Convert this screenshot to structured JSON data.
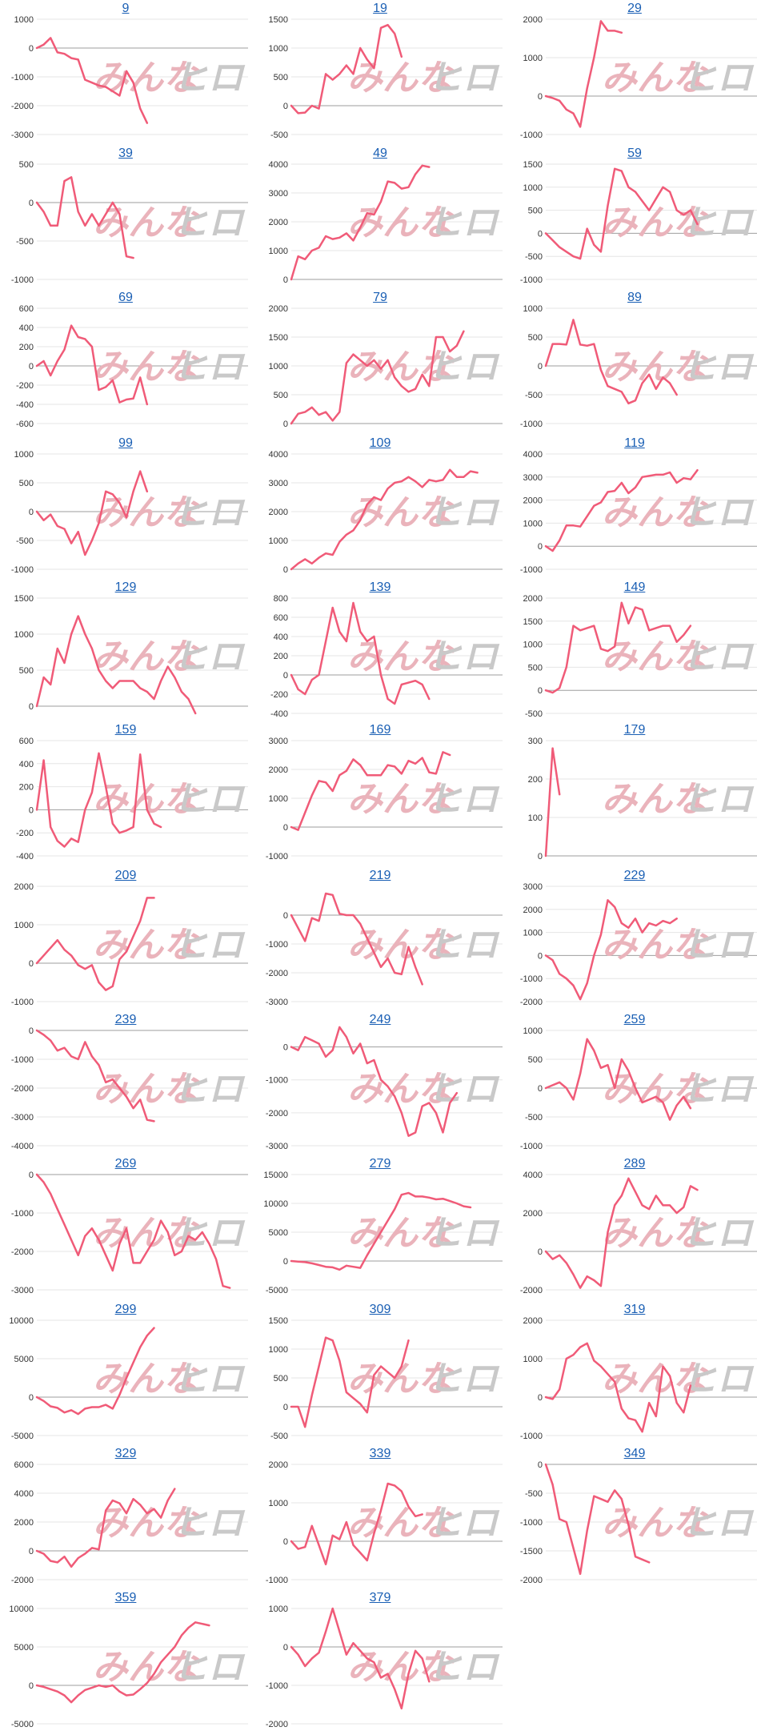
{
  "colors": {
    "line": "#f05b78",
    "grid": "#e6e6e6",
    "baseline": "#9e9e9e",
    "title": "#1a5fb4"
  },
  "watermark": {
    "part1": "みんな",
    "part2": "ヒロ"
  },
  "chart_data": [
    {
      "type": "line",
      "title": "9",
      "yticks": [
        1000,
        0,
        -1000,
        -2000,
        -3000
      ],
      "ylim": [
        -3000,
        1000
      ],
      "values": [
        0,
        120,
        350,
        -150,
        -200,
        -350,
        -400,
        -1100,
        -1200,
        -1300,
        -1350,
        -1500,
        -1650,
        -800,
        -1200,
        -2100,
        -2600
      ]
    },
    {
      "type": "line",
      "title": "19",
      "yticks": [
        1500,
        1000,
        500,
        0,
        -500
      ],
      "ylim": [
        -500,
        1500
      ],
      "values": [
        0,
        -130,
        -120,
        0,
        -50,
        550,
        450,
        550,
        700,
        550,
        1000,
        800,
        650,
        1350,
        1400,
        1250,
        850
      ]
    },
    {
      "type": "line",
      "title": "29",
      "yticks": [
        2000,
        1000,
        0,
        -1000
      ],
      "ylim": [
        -1000,
        2000
      ],
      "values": [
        0,
        -50,
        -120,
        -350,
        -450,
        -800,
        200,
        1000,
        1950,
        1700,
        1700,
        1650
      ]
    },
    {
      "type": "line",
      "title": "39",
      "yticks": [
        500,
        0,
        -500,
        -1000
      ],
      "ylim": [
        -1000,
        500
      ],
      "values": [
        0,
        -120,
        -300,
        -300,
        280,
        330,
        -120,
        -300,
        -150,
        -300,
        -150,
        0,
        -150,
        -700,
        -720
      ]
    },
    {
      "type": "line",
      "title": "49",
      "yticks": [
        4000,
        3000,
        2000,
        1000,
        0
      ],
      "ylim": [
        0,
        4000
      ],
      "values": [
        0,
        800,
        700,
        1000,
        1100,
        1500,
        1400,
        1450,
        1600,
        1350,
        1800,
        2300,
        2250,
        2700,
        3400,
        3350,
        3150,
        3200,
        3650,
        3950,
        3900
      ]
    },
    {
      "type": "line",
      "title": "59",
      "yticks": [
        1500,
        1000,
        500,
        0,
        -500,
        -1000
      ],
      "ylim": [
        -1000,
        1500
      ],
      "values": [
        0,
        -150,
        -300,
        -400,
        -500,
        -550,
        100,
        -250,
        -400,
        600,
        1400,
        1350,
        1000,
        900,
        700,
        500,
        750,
        1000,
        900,
        500,
        400,
        500,
        200
      ]
    },
    {
      "type": "line",
      "title": "69",
      "yticks": [
        600,
        400,
        200,
        0,
        -200,
        -400,
        -600
      ],
      "ylim": [
        -600,
        600
      ],
      "values": [
        0,
        50,
        -100,
        50,
        170,
        420,
        300,
        280,
        200,
        -250,
        -220,
        -150,
        -380,
        -350,
        -340,
        -120,
        -400
      ]
    },
    {
      "type": "line",
      "title": "79",
      "yticks": [
        2000,
        1500,
        1000,
        500,
        0
      ],
      "ylim": [
        0,
        2000
      ],
      "values": [
        0,
        170,
        200,
        280,
        150,
        200,
        50,
        200,
        1050,
        1200,
        1100,
        1000,
        1100,
        950,
        1100,
        800,
        650,
        550,
        600,
        850,
        650,
        1500,
        1500,
        1250,
        1350,
        1600
      ]
    },
    {
      "type": "line",
      "title": "89",
      "yticks": [
        1000,
        500,
        0,
        -500,
        -1000
      ],
      "ylim": [
        -1000,
        1000
      ],
      "values": [
        0,
        380,
        380,
        370,
        800,
        370,
        350,
        380,
        -70,
        -350,
        -400,
        -450,
        -650,
        -600,
        -300,
        -150,
        -400,
        -200,
        -300,
        -500
      ]
    },
    {
      "type": "line",
      "title": "99",
      "yticks": [
        1000,
        500,
        0,
        -500,
        -1000
      ],
      "ylim": [
        -1000,
        1000
      ],
      "values": [
        0,
        -150,
        -50,
        -250,
        -300,
        -550,
        -350,
        -750,
        -500,
        -200,
        350,
        300,
        150,
        -100,
        350,
        700,
        350
      ]
    },
    {
      "type": "line",
      "title": "109",
      "yticks": [
        4000,
        3000,
        2000,
        1000,
        0
      ],
      "ylim": [
        0,
        4000
      ],
      "values": [
        0,
        200,
        350,
        200,
        400,
        550,
        500,
        950,
        1200,
        1350,
        1700,
        2250,
        2500,
        2400,
        2800,
        3000,
        3050,
        3200,
        3050,
        2850,
        3100,
        3050,
        3100,
        3450,
        3200,
        3200,
        3400,
        3350
      ]
    },
    {
      "type": "line",
      "title": "119",
      "yticks": [
        4000,
        3000,
        2000,
        1000,
        0,
        -1000
      ],
      "ylim": [
        -1000,
        4000
      ],
      "values": [
        0,
        -200,
        250,
        900,
        900,
        850,
        1300,
        1750,
        1900,
        2350,
        2400,
        2750,
        2300,
        2550,
        3000,
        3050,
        3100,
        3100,
        3200,
        2750,
        2950,
        2900,
        3300
      ]
    },
    {
      "type": "line",
      "title": "129",
      "yticks": [
        1500,
        1000,
        500,
        0
      ],
      "ylim": [
        -100,
        1500
      ],
      "values": [
        0,
        400,
        300,
        800,
        600,
        1000,
        1250,
        1000,
        800,
        500,
        350,
        250,
        350,
        350,
        350,
        250,
        200,
        100,
        350,
        550,
        400,
        200,
        100,
        -100
      ]
    },
    {
      "type": "line",
      "title": "139",
      "yticks": [
        800,
        600,
        400,
        200,
        0,
        -200,
        -400
      ],
      "ylim": [
        -400,
        800
      ],
      "values": [
        0,
        -150,
        -200,
        -50,
        0,
        350,
        700,
        450,
        350,
        750,
        450,
        350,
        400,
        0,
        -250,
        -300,
        -100,
        -80,
        -60,
        -100,
        -250
      ]
    },
    {
      "type": "line",
      "title": "149",
      "yticks": [
        2000,
        1500,
        1000,
        500,
        0,
        -500
      ],
      "ylim": [
        -500,
        2000
      ],
      "values": [
        0,
        -50,
        50,
        500,
        1400,
        1300,
        1350,
        1400,
        900,
        850,
        950,
        1900,
        1450,
        1800,
        1750,
        1300,
        1350,
        1400,
        1400,
        1050,
        1200,
        1400
      ]
    },
    {
      "type": "line",
      "title": "159",
      "yticks": [
        600,
        400,
        200,
        0,
        -200,
        -400
      ],
      "ylim": [
        -400,
        600
      ],
      "values": [
        0,
        430,
        -150,
        -270,
        -320,
        -250,
        -280,
        0,
        150,
        490,
        200,
        -120,
        -200,
        -180,
        -150,
        480,
        0,
        -120,
        -150
      ]
    },
    {
      "type": "line",
      "title": "169",
      "yticks": [
        3000,
        2000,
        1000,
        0,
        -1000
      ],
      "ylim": [
        -1000,
        3000
      ],
      "values": [
        0,
        -100,
        500,
        1100,
        1600,
        1550,
        1250,
        1800,
        1950,
        2350,
        2150,
        1800,
        1800,
        1800,
        2150,
        2100,
        1850,
        2300,
        2200,
        2400,
        1900,
        1850,
        2600,
        2500
      ]
    },
    {
      "type": "line",
      "title": "179",
      "yticks": [
        300,
        200,
        100,
        0
      ],
      "ylim": [
        0,
        300
      ],
      "values": [
        0,
        280,
        160
      ]
    },
    {
      "type": "line",
      "title": "209",
      "yticks": [
        2000,
        1000,
        0,
        -1000
      ],
      "ylim": [
        -1000,
        2000
      ],
      "values": [
        0,
        200,
        400,
        600,
        350,
        200,
        -50,
        -150,
        -50,
        -500,
        -700,
        -600,
        100,
        300,
        700,
        1100,
        1700,
        1700
      ]
    },
    {
      "type": "line",
      "title": "219",
      "yticks": [
        0,
        -1000,
        -2000,
        -3000
      ],
      "ylim": [
        -3000,
        1000
      ],
      "values": [
        0,
        -450,
        -900,
        -100,
        -200,
        750,
        700,
        50,
        0,
        0,
        -300,
        -800,
        -1300,
        -1800,
        -1500,
        -2000,
        -2050,
        -1100,
        -1800,
        -2400
      ]
    },
    {
      "type": "line",
      "title": "229",
      "yticks": [
        3000,
        2000,
        1000,
        0,
        -1000,
        -2000
      ],
      "ylim": [
        -2000,
        3000
      ],
      "values": [
        0,
        -200,
        -800,
        -1000,
        -1300,
        -1900,
        -1200,
        0,
        900,
        2400,
        2100,
        1400,
        1200,
        1600,
        1000,
        1400,
        1300,
        1500,
        1400,
        1600
      ]
    },
    {
      "type": "line",
      "title": "239",
      "yticks": [
        0,
        -1000,
        -2000,
        -3000,
        -4000
      ],
      "ylim": [
        -4000,
        0
      ],
      "values": [
        0,
        -150,
        -350,
        -700,
        -600,
        -900,
        -1000,
        -400,
        -900,
        -1200,
        -1800,
        -1700,
        -2000,
        -2300,
        -2700,
        -2400,
        -3100,
        -3150
      ]
    },
    {
      "type": "line",
      "title": "249",
      "yticks": [
        0,
        -1000,
        -2000,
        -3000
      ],
      "ylim": [
        -3000,
        500
      ],
      "values": [
        0,
        -100,
        300,
        200,
        100,
        -300,
        -100,
        600,
        300,
        -200,
        100,
        -500,
        -400,
        -1000,
        -1200,
        -1500,
        -2000,
        -2700,
        -2600,
        -1800,
        -1700,
        -2000,
        -2600,
        -1700,
        -1400
      ]
    },
    {
      "type": "line",
      "title": "259",
      "yticks": [
        1000,
        500,
        0,
        -500,
        -1000
      ],
      "ylim": [
        -1000,
        1000
      ],
      "values": [
        0,
        50,
        100,
        0,
        -200,
        250,
        850,
        650,
        350,
        400,
        0,
        500,
        300,
        0,
        -250,
        -200,
        -150,
        -250,
        -550,
        -300,
        -150,
        -350
      ]
    },
    {
      "type": "line",
      "title": "269",
      "yticks": [
        0,
        -1000,
        -2000,
        -3000
      ],
      "ylim": [
        -3000,
        0
      ],
      "values": [
        0,
        -200,
        -500,
        -900,
        -1300,
        -1700,
        -2100,
        -1600,
        -1400,
        -1700,
        -2100,
        -2500,
        -1800,
        -1400,
        -2300,
        -2300,
        -2000,
        -1700,
        -1200,
        -1500,
        -2100,
        -2000,
        -1600,
        -1700,
        -1500,
        -1800,
        -2200,
        -2900,
        -2950
      ]
    },
    {
      "type": "line",
      "title": "279",
      "yticks": [
        15000,
        10000,
        5000,
        0,
        -5000
      ],
      "ylim": [
        -5000,
        15000
      ],
      "values": [
        0,
        -100,
        -200,
        -400,
        -700,
        -1000,
        -1100,
        -1500,
        -800,
        -1000,
        -1200,
        1000,
        3000,
        5000,
        7000,
        9000,
        11500,
        11800,
        11200,
        11200,
        11000,
        10700,
        10800,
        10400,
        10000,
        9500,
        9300
      ]
    },
    {
      "type": "line",
      "title": "289",
      "yticks": [
        4000,
        2000,
        0,
        -2000
      ],
      "ylim": [
        -2000,
        4000
      ],
      "values": [
        0,
        -400,
        -200,
        -600,
        -1200,
        -1900,
        -1300,
        -1500,
        -1800,
        1000,
        2400,
        2900,
        3800,
        3100,
        2400,
        2200,
        2900,
        2400,
        2400,
        2000,
        2300,
        3400,
        3200
      ]
    },
    {
      "type": "line",
      "title": "299",
      "yticks": [
        10000,
        5000,
        0,
        -5000
      ],
      "ylim": [
        -5000,
        10000
      ],
      "values": [
        0,
        -500,
        -1200,
        -1400,
        -2000,
        -1700,
        -2200,
        -1500,
        -1300,
        -1300,
        -1000,
        -1500,
        300,
        2500,
        4500,
        6500,
        8000,
        9000
      ]
    },
    {
      "type": "line",
      "title": "309",
      "yticks": [
        1500,
        1000,
        500,
        0,
        -500
      ],
      "ylim": [
        -500,
        1500
      ],
      "values": [
        0,
        0,
        -350,
        200,
        700,
        1200,
        1150,
        800,
        250,
        150,
        50,
        -100,
        550,
        700,
        600,
        500,
        700,
        1150
      ]
    },
    {
      "type": "line",
      "title": "319",
      "yticks": [
        2000,
        1000,
        0,
        -1000
      ],
      "ylim": [
        -1000,
        2000
      ],
      "values": [
        0,
        -50,
        200,
        1000,
        1100,
        1300,
        1400,
        950,
        800,
        600,
        400,
        -300,
        -550,
        -600,
        -900,
        -150,
        -500,
        800,
        550,
        -150,
        -400,
        300
      ]
    },
    {
      "type": "line",
      "title": "329",
      "yticks": [
        6000,
        4000,
        2000,
        0,
        -2000
      ],
      "ylim": [
        -2000,
        6000
      ],
      "values": [
        0,
        -200,
        -700,
        -800,
        -400,
        -1100,
        -500,
        -200,
        200,
        100,
        2800,
        3500,
        3300,
        2600,
        3600,
        3200,
        2600,
        2900,
        2300,
        3500,
        4300
      ]
    },
    {
      "type": "line",
      "title": "339",
      "yticks": [
        2000,
        1000,
        0,
        -1000
      ],
      "ylim": [
        -1000,
        2000
      ],
      "values": [
        0,
        -200,
        -150,
        400,
        -100,
        -600,
        150,
        50,
        500,
        -100,
        -300,
        -500,
        200,
        800,
        1500,
        1450,
        1300,
        900,
        650,
        700
      ]
    },
    {
      "type": "line",
      "title": "349",
      "yticks": [
        0,
        -500,
        -1000,
        -1500,
        -2000
      ],
      "ylim": [
        -2000,
        0
      ],
      "values": [
        0,
        -350,
        -950,
        -1000,
        -1450,
        -1900,
        -1150,
        -550,
        -600,
        -650,
        -450,
        -600,
        -1050,
        -1600,
        -1650,
        -1700
      ]
    },
    {
      "type": "line",
      "title": "359",
      "yticks": [
        10000,
        5000,
        0,
        -5000
      ],
      "ylim": [
        -5000,
        10000
      ],
      "values": [
        0,
        -200,
        -500,
        -800,
        -1300,
        -2200,
        -1300,
        -600,
        -300,
        0,
        -200,
        0,
        -800,
        -1300,
        -1200,
        -500,
        300,
        1500,
        3000,
        4000,
        5000,
        6500,
        7500,
        8200,
        8000,
        7800
      ]
    },
    {
      "type": "line",
      "title": "379",
      "yticks": [
        1000,
        0,
        -1000,
        -2000
      ],
      "ylim": [
        -2000,
        1000
      ],
      "values": [
        0,
        -200,
        -500,
        -300,
        -150,
        400,
        1000,
        400,
        -200,
        100,
        -100,
        -300,
        -400,
        -800,
        -700,
        -1100,
        -1600,
        -700,
        -100,
        -300,
        -900
      ]
    }
  ]
}
